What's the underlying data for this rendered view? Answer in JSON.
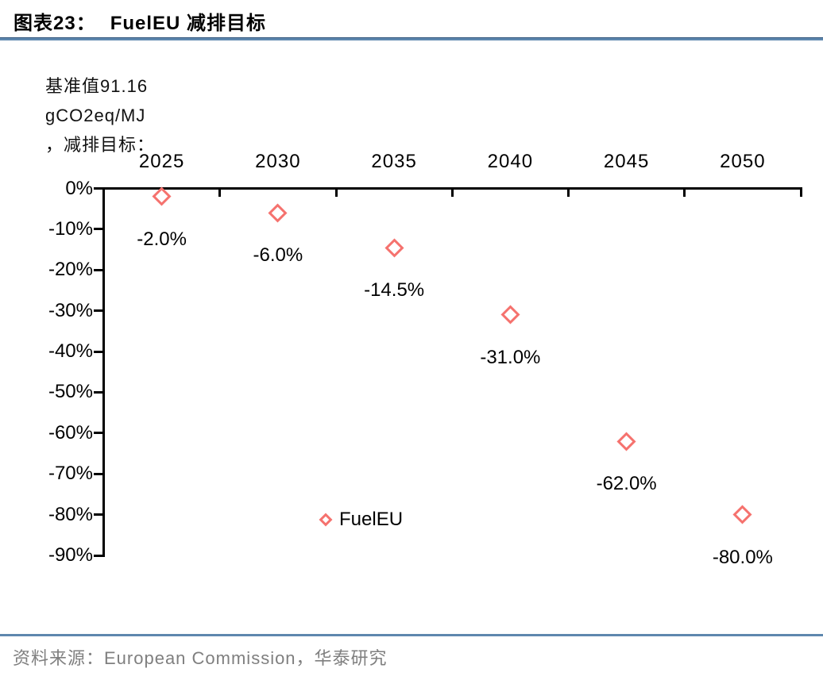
{
  "title": {
    "label": "图表23：",
    "text": "FuelEU 减排目标"
  },
  "annotation": {
    "lines": [
      "基准值91.16",
      "gCO2eq/MJ",
      "，减排目标："
    ]
  },
  "legend": {
    "label": "FuelEU"
  },
  "footer": {
    "source": "资料来源：European Commission，华泰研究"
  },
  "colors": {
    "marker": "#F5726E",
    "divider": "#5E87AE",
    "divider_edge": "#2F547A",
    "axis": "#000000",
    "source_text": "#7F7F7F"
  },
  "chart_data": {
    "type": "scatter",
    "title": "FuelEU 减排目标",
    "baseline_note": "基准值91.16 gCO2eq/MJ，减排目标：",
    "categories": [
      "2025",
      "2030",
      "2035",
      "2040",
      "2045",
      "2050"
    ],
    "series": [
      {
        "name": "FuelEU",
        "values": [
          -2.0,
          -6.0,
          -14.5,
          -31.0,
          -62.0,
          -80.0
        ]
      }
    ],
    "point_labels": [
      "-2.0%",
      "-6.0%",
      "-14.5%",
      "-31.0%",
      "-62.0%",
      "-80.0%"
    ],
    "y_ticks": [
      0,
      -10,
      -20,
      -30,
      -40,
      -50,
      -60,
      -70,
      -80,
      -90
    ],
    "y_tick_labels": [
      "0%",
      "-10%",
      "-20%",
      "-30%",
      "-40%",
      "-50%",
      "-60%",
      "-70%",
      "-80%",
      "-90%"
    ],
    "ylim": [
      -90,
      0
    ],
    "xlabel": "",
    "ylabel": "",
    "grid": false,
    "marker_style": "hollow-diamond",
    "legend_position": "inside-bottom-center-left",
    "source": "European Commission，华泰研究"
  }
}
